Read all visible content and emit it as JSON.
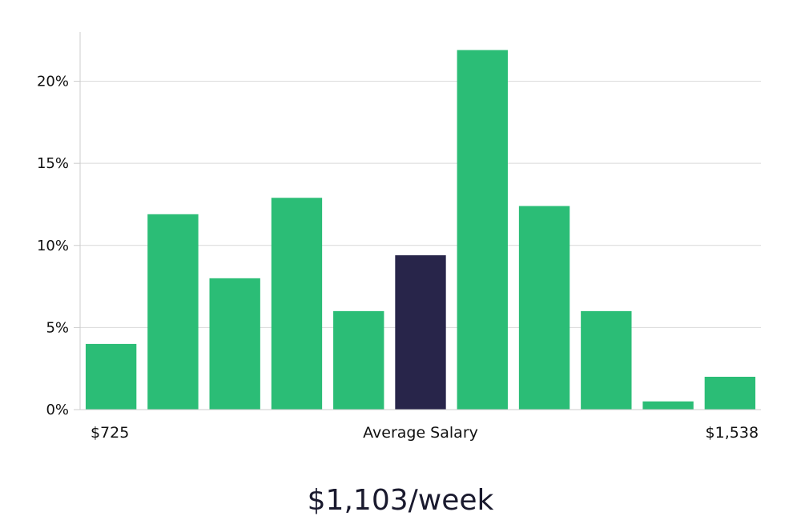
{
  "chart_data": {
    "type": "bar",
    "values": [
      4.0,
      11.9,
      8.0,
      12.9,
      6.0,
      9.4,
      21.9,
      12.4,
      6.0,
      0.5,
      2.0
    ],
    "highlight_index": 5,
    "colors": {
      "bar": "#2bbd76",
      "highlight": "#28254a",
      "grid": "#d9d9d9",
      "axis": "#cccccc"
    },
    "ylim": [
      0,
      23
    ],
    "yticks": [
      {
        "value": 0,
        "label": "0%"
      },
      {
        "value": 5,
        "label": "5%"
      },
      {
        "value": 10,
        "label": "10%"
      },
      {
        "value": 15,
        "label": "15%"
      },
      {
        "value": 20,
        "label": "20%"
      }
    ],
    "x_labels": {
      "left": "$725",
      "center": "Average Salary",
      "right": "$1,538"
    },
    "grid": true
  },
  "headline": "$1,103/week"
}
